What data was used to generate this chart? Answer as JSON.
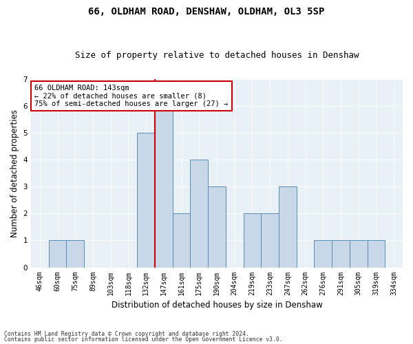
{
  "title1": "66, OLDHAM ROAD, DENSHAW, OLDHAM, OL3 5SP",
  "title2": "Size of property relative to detached houses in Denshaw",
  "xlabel": "Distribution of detached houses by size in Denshaw",
  "ylabel": "Number of detached properties",
  "footnote1": "Contains HM Land Registry data © Crown copyright and database right 2024.",
  "footnote2": "Contains public sector information licensed under the Open Government Licence v3.0.",
  "annotation_line1": "66 OLDHAM ROAD: 143sqm",
  "annotation_line2": "← 22% of detached houses are smaller (8)",
  "annotation_line3": "75% of semi-detached houses are larger (27) →",
  "bins": [
    "46sqm",
    "60sqm",
    "75sqm",
    "89sqm",
    "103sqm",
    "118sqm",
    "132sqm",
    "147sqm",
    "161sqm",
    "175sqm",
    "190sqm",
    "204sqm",
    "219sqm",
    "233sqm",
    "247sqm",
    "262sqm",
    "276sqm",
    "291sqm",
    "305sqm",
    "319sqm",
    "334sqm"
  ],
  "bar_heights": [
    0,
    1,
    1,
    0,
    0,
    0,
    5,
    6,
    2,
    4,
    3,
    0,
    2,
    2,
    3,
    0,
    1,
    1,
    1,
    1,
    0
  ],
  "bar_color": "#c8d8e8",
  "bar_edge_color": "#5a8ab0",
  "vline_x": 6.5,
  "vline_color": "#cc0000",
  "ylim": [
    0,
    7
  ],
  "yticks": [
    0,
    1,
    2,
    3,
    4,
    5,
    6,
    7
  ],
  "plot_background": "#e8f0f8",
  "annotation_box_color": "#ffffff",
  "annotation_box_edge": "#cc0000",
  "title_fontsize": 10,
  "subtitle_fontsize": 9,
  "tick_fontsize": 7,
  "ylabel_fontsize": 8.5,
  "xlabel_fontsize": 8.5,
  "annotation_fontsize": 7.5
}
